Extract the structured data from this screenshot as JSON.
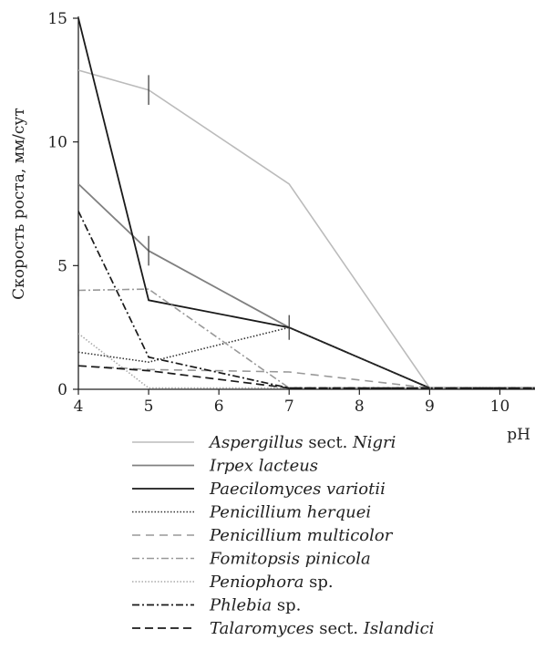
{
  "chart_data": {
    "type": "line",
    "xlabel": "pH",
    "ylabel": "Скорость роста, мм/сут",
    "xlim": [
      4,
      10.5
    ],
    "ylim": [
      0,
      15
    ],
    "xticks": [
      4,
      5,
      6,
      7,
      8,
      9,
      10
    ],
    "yticks": [
      0,
      5,
      10,
      15
    ],
    "grid": false,
    "legend_position": "bottom",
    "series": [
      {
        "name": "Aspergillus sect. Nigri",
        "name_parts": [
          {
            "t": "Aspergillus",
            "i": true
          },
          {
            "t": " sect. ",
            "i": false
          },
          {
            "t": "Nigri",
            "i": true
          }
        ],
        "color": "#bbbbbb",
        "dash": "solid",
        "width": 1.6,
        "x": [
          4,
          5,
          7,
          9,
          10.5
        ],
        "y": [
          12.9,
          12.1,
          8.3,
          0.05,
          0.05
        ],
        "error_bars": [
          {
            "x": 5,
            "y": 12.1,
            "err": 0.6
          }
        ]
      },
      {
        "name": "Irpex lacteus",
        "name_parts": [
          {
            "t": "Irpex lacteus",
            "i": true
          }
        ],
        "color": "#808080",
        "dash": "solid",
        "width": 1.8,
        "x": [
          4,
          5,
          7,
          9,
          10.5
        ],
        "y": [
          8.3,
          5.6,
          2.5,
          0.05,
          0.05
        ],
        "error_bars": [
          {
            "x": 5,
            "y": 5.6,
            "err": 0.6
          }
        ]
      },
      {
        "name": "Paecilomyces variotii",
        "name_parts": [
          {
            "t": "Paecilomyces variotii",
            "i": true
          }
        ],
        "color": "#1a1a1a",
        "dash": "solid",
        "width": 1.8,
        "x": [
          4,
          5,
          7,
          9,
          10.5
        ],
        "y": [
          15,
          3.6,
          2.5,
          0.05,
          0.05
        ],
        "error_bars": [
          {
            "x": 7,
            "y": 2.5,
            "err": 0.5
          }
        ]
      },
      {
        "name": "Penicillium herquei",
        "name_parts": [
          {
            "t": "Penicillium herquei",
            "i": true
          }
        ],
        "color": "#333333",
        "dash": "1.5,2",
        "width": 1.6,
        "x": [
          4,
          5,
          7,
          9,
          10.5
        ],
        "y": [
          1.5,
          1.1,
          2.5,
          0.05,
          0.05
        ],
        "error_bars": []
      },
      {
        "name": "Penicillium multicolor",
        "name_parts": [
          {
            "t": "Penicillium multicolor",
            "i": true
          }
        ],
        "color": "#999999",
        "dash": "9,6",
        "width": 1.6,
        "x": [
          4,
          5,
          7,
          9,
          10.5
        ],
        "y": [
          0.95,
          0.8,
          0.7,
          0.05,
          0.05
        ],
        "error_bars": []
      },
      {
        "name": "Fomitopsis pinicola",
        "name_parts": [
          {
            "t": "Fomitopsis pinicola",
            "i": true
          }
        ],
        "color": "#999999",
        "dash": "8,3,2,3",
        "width": 1.6,
        "x": [
          4,
          5,
          7,
          9,
          10.5
        ],
        "y": [
          4.0,
          4.05,
          0.05,
          0.05,
          0.05
        ],
        "error_bars": [
          {
            "x": 4,
            "y": 4.0,
            "err": 0.25
          }
        ]
      },
      {
        "name": "Peniophora sp.",
        "name_parts": [
          {
            "t": "Peniophora",
            "i": true
          },
          {
            "t": " sp.",
            "i": false
          }
        ],
        "color": "#aaaaaa",
        "dash": "1.5,2",
        "width": 1.6,
        "x": [
          4,
          5,
          7,
          9,
          10.5
        ],
        "y": [
          2.25,
          0.05,
          0.05,
          0.05,
          0.05
        ],
        "error_bars": []
      },
      {
        "name": "Phlebia sp.",
        "name_parts": [
          {
            "t": "Phlebia",
            "i": true
          },
          {
            "t": " sp.",
            "i": false
          }
        ],
        "color": "#1a1a1a",
        "dash": "8,3,2,3",
        "width": 1.7,
        "x": [
          4,
          5,
          7,
          9,
          10.5
        ],
        "y": [
          7.2,
          1.3,
          0.05,
          0.05,
          0.05
        ],
        "error_bars": []
      },
      {
        "name": "Talaromyces sect. Islandici",
        "name_parts": [
          {
            "t": "Talaromyces",
            "i": true
          },
          {
            "t": " sect. ",
            "i": false
          },
          {
            "t": "Islandici",
            "i": true
          }
        ],
        "color": "#1a1a1a",
        "dash": "9,5",
        "width": 1.7,
        "x": [
          4,
          5,
          7,
          9,
          10.5
        ],
        "y": [
          0.95,
          0.75,
          0.05,
          0.05,
          0.05
        ],
        "error_bars": []
      }
    ]
  }
}
